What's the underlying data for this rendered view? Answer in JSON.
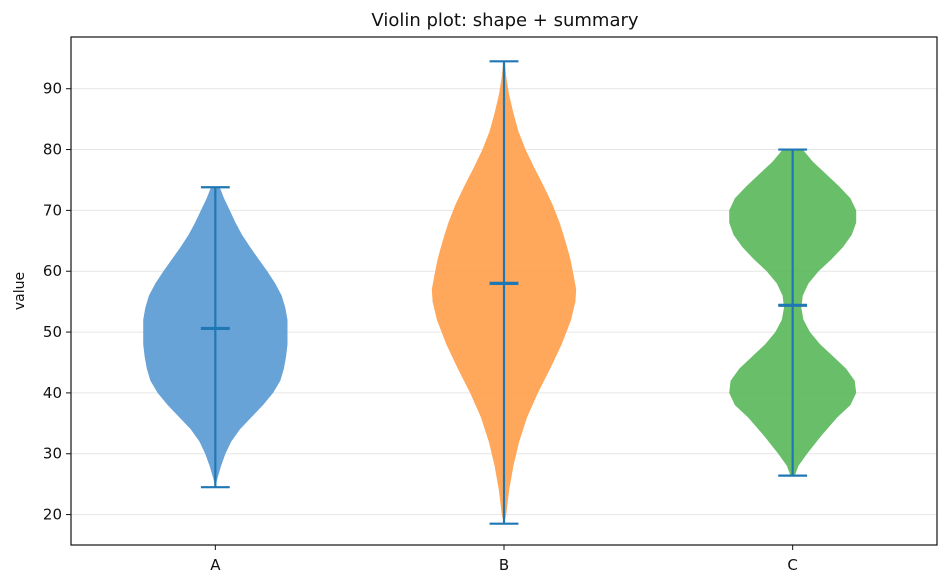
{
  "chart_data": {
    "type": "violin",
    "title": "Violin plot: shape + summary",
    "xlabel": "",
    "ylabel": "value",
    "ylim": [
      15,
      98.5
    ],
    "yticks": [
      20,
      30,
      40,
      50,
      60,
      70,
      80,
      90
    ],
    "grid": "horizontal",
    "categories": [
      "A",
      "B",
      "C"
    ],
    "colors": [
      "#5b9bd5",
      "#ffa04d",
      "#5cb85c"
    ],
    "summary_color": "#1f77b4",
    "series": [
      {
        "category": "A",
        "min": 24.5,
        "max": 73.8,
        "median": 50.6,
        "density": [
          [
            24.5,
            0.0
          ],
          [
            26,
            0.03
          ],
          [
            28,
            0.08
          ],
          [
            30,
            0.14
          ],
          [
            32,
            0.22
          ],
          [
            34,
            0.34
          ],
          [
            36,
            0.5
          ],
          [
            38,
            0.66
          ],
          [
            40,
            0.8
          ],
          [
            42,
            0.9
          ],
          [
            44,
            0.95
          ],
          [
            46,
            0.98
          ],
          [
            48,
            1.0
          ],
          [
            50,
            1.0
          ],
          [
            52,
            1.0
          ],
          [
            54,
            0.97
          ],
          [
            56,
            0.92
          ],
          [
            58,
            0.83
          ],
          [
            60,
            0.72
          ],
          [
            62,
            0.6
          ],
          [
            64,
            0.48
          ],
          [
            66,
            0.37
          ],
          [
            68,
            0.28
          ],
          [
            70,
            0.2
          ],
          [
            72,
            0.12
          ],
          [
            73.8,
            0.06
          ]
        ]
      },
      {
        "category": "B",
        "min": 18.5,
        "max": 94.5,
        "median": 58.0,
        "density": [
          [
            18.5,
            0.0
          ],
          [
            20,
            0.03
          ],
          [
            24,
            0.07
          ],
          [
            28,
            0.13
          ],
          [
            32,
            0.21
          ],
          [
            36,
            0.32
          ],
          [
            40,
            0.47
          ],
          [
            44,
            0.64
          ],
          [
            48,
            0.8
          ],
          [
            52,
            0.93
          ],
          [
            55,
            0.99
          ],
          [
            57,
            1.0
          ],
          [
            59,
            0.97
          ],
          [
            62,
            0.92
          ],
          [
            65,
            0.85
          ],
          [
            68,
            0.77
          ],
          [
            71,
            0.67
          ],
          [
            74,
            0.55
          ],
          [
            77,
            0.42
          ],
          [
            80,
            0.3
          ],
          [
            83,
            0.2
          ],
          [
            86,
            0.13
          ],
          [
            89,
            0.07
          ],
          [
            92,
            0.03
          ],
          [
            94.5,
            0.01
          ]
        ]
      },
      {
        "category": "C",
        "min": 26.4,
        "max": 80.0,
        "median": 54.4,
        "density": [
          [
            26.4,
            0.03
          ],
          [
            28,
            0.08
          ],
          [
            30,
            0.2
          ],
          [
            33,
            0.4
          ],
          [
            36,
            0.62
          ],
          [
            38,
            0.8
          ],
          [
            40,
            0.88
          ],
          [
            42,
            0.86
          ],
          [
            44,
            0.74
          ],
          [
            46,
            0.56
          ],
          [
            48,
            0.38
          ],
          [
            50,
            0.24
          ],
          [
            52,
            0.15
          ],
          [
            54,
            0.12
          ],
          [
            56,
            0.14
          ],
          [
            58,
            0.22
          ],
          [
            60,
            0.36
          ],
          [
            62,
            0.54
          ],
          [
            64,
            0.7
          ],
          [
            66,
            0.82
          ],
          [
            68,
            0.88
          ],
          [
            70,
            0.88
          ],
          [
            72,
            0.8
          ],
          [
            74,
            0.64
          ],
          [
            76,
            0.46
          ],
          [
            78,
            0.28
          ],
          [
            80,
            0.14
          ]
        ]
      }
    ]
  }
}
